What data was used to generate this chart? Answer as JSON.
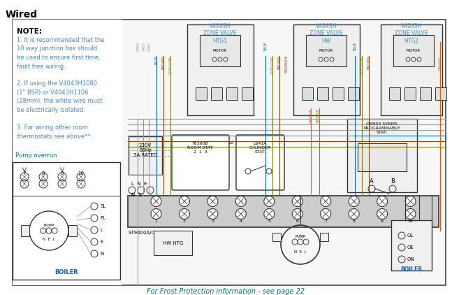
{
  "title": "Wired",
  "bg_color": "#ffffff",
  "note_lines": [
    [
      "NOTE:",
      true
    ],
    [
      "1. It is recommended that the",
      false
    ],
    [
      "10 way junction box should",
      false
    ],
    [
      "be used to ensure first time,",
      false
    ],
    [
      "fault free wiring.",
      false
    ],
    [
      "",
      false
    ],
    [
      "2. If using the V4043H1080",
      false
    ],
    [
      "(1\" BSP) or V4043H1106",
      false
    ],
    [
      "(28mm), the white wire must",
      false
    ],
    [
      "be electrically isolated.",
      false
    ],
    [
      "",
      false
    ],
    [
      "3. For wiring other room",
      false
    ],
    [
      "thermostats see above**.",
      false
    ]
  ],
  "pump_overrun_label": "Pump overrun",
  "zone_labels": [
    "V4043H\nZONE VALVE\nHTG1",
    "V4043H\nZONE VALVE\nHW",
    "V4043H\nZONE VALVE\nHTG2"
  ],
  "supply_label": "230V\n50Hz\n3A RATED",
  "footer_text": "For Frost Protection information - see page 22",
  "room_stat_label": "T6360B\nROOM STAT.\n2  1  3",
  "cylinder_stat_label": "L641A\nCYLINDER\nSTAT.",
  "cm900_label": "CM900 SERIES\nPROGRAMMABLE\nSTAT.",
  "boiler_label": "BOILER",
  "st9400_label": "ST9400A/C",
  "hw_htg_label": "HW HTG",
  "colors": {
    "blue": "#0066cc",
    "dark_blue": "#003399",
    "orange": "#cc6600",
    "grey": "#888888",
    "brown": "#8B4513",
    "gyellow": "#808000",
    "black": "#111111",
    "teal": "#007777",
    "note_blue": "#4488cc",
    "cyan_label": "#3399cc",
    "wire_grey": "#999999",
    "wire_black": "#333333"
  }
}
